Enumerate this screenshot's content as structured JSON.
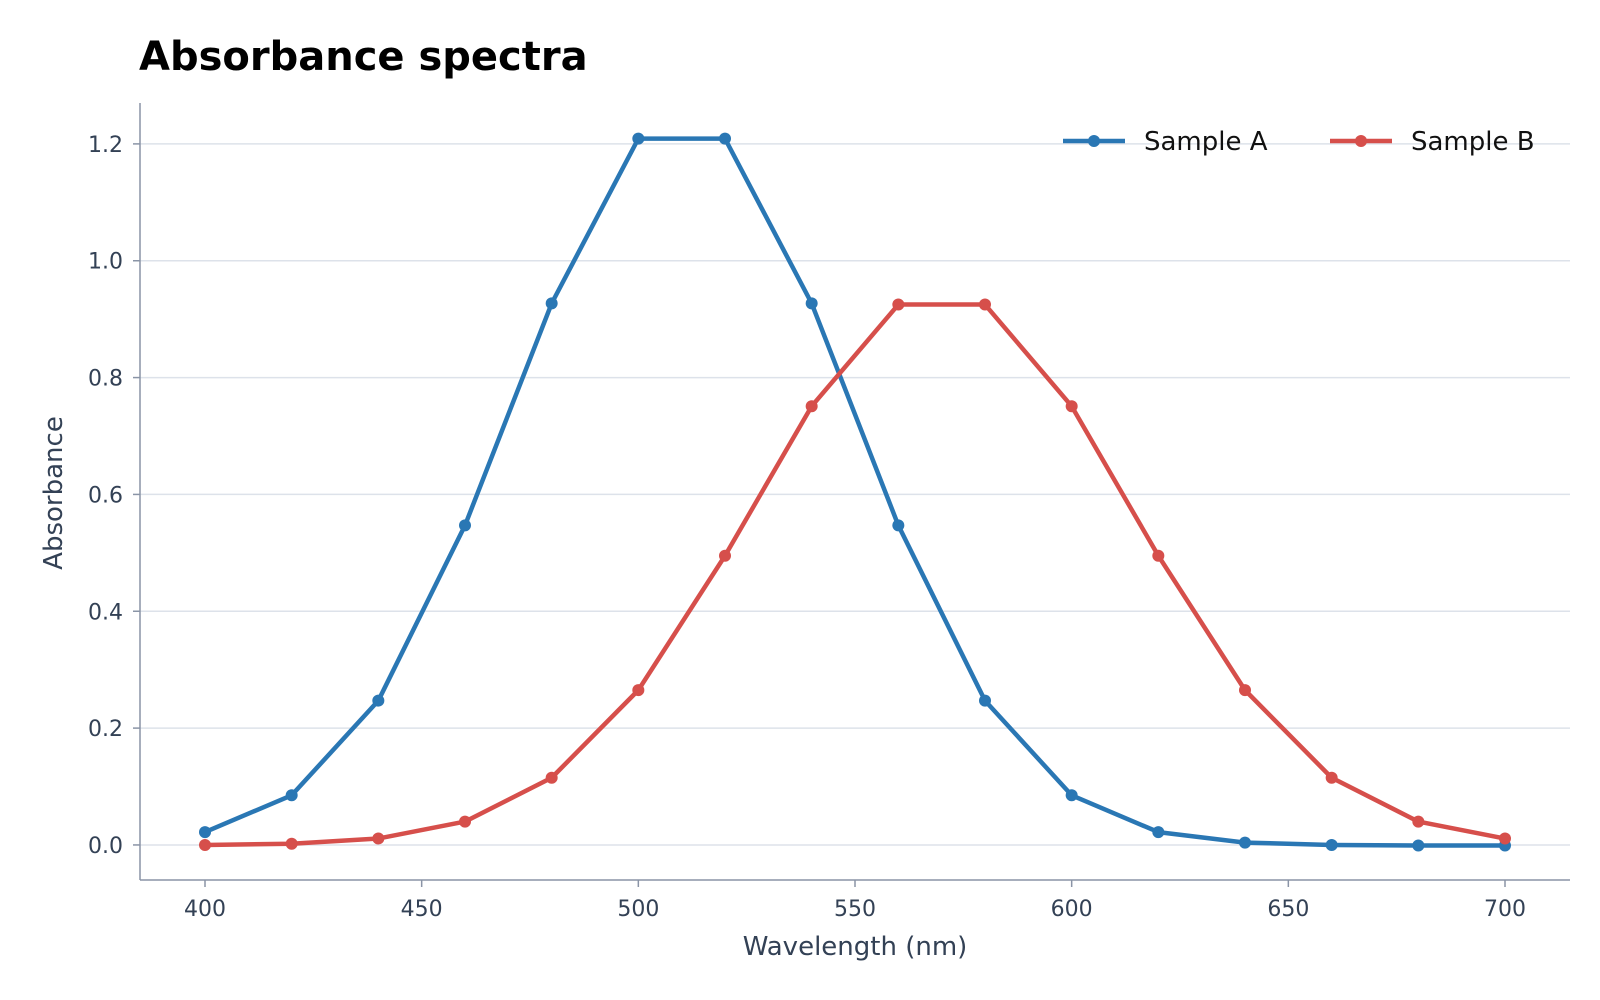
{
  "chart_data": {
    "type": "line",
    "title": "Absorbance spectra",
    "xlabel": "Wavelength (nm)",
    "ylabel": "Absorbance",
    "xlim": [
      385,
      715
    ],
    "ylim": [
      -0.06,
      1.27
    ],
    "xticks": [
      400,
      450,
      500,
      550,
      600,
      650,
      700
    ],
    "xtick_labels": [
      "400",
      "450",
      "500",
      "550",
      "600",
      "650",
      "700"
    ],
    "yticks": [
      0.0,
      0.2,
      0.4,
      0.6,
      0.8,
      1.0,
      1.2
    ],
    "ytick_labels": [
      "0.0",
      "0.2",
      "0.4",
      "0.6",
      "0.8",
      "1.0",
      "1.2"
    ],
    "grid": "horizontal",
    "legend_position": "top-right",
    "x": [
      400,
      420,
      440,
      460,
      480,
      500,
      520,
      540,
      560,
      580,
      600,
      620,
      640,
      660,
      680,
      700
    ],
    "series": [
      {
        "name": "Sample A",
        "color": "#2a77b4",
        "values": [
          0.022,
          0.085,
          0.247,
          0.547,
          0.927,
          1.209,
          1.209,
          0.927,
          0.547,
          0.247,
          0.085,
          0.022,
          0.004,
          0.0,
          -0.001,
          -0.001
        ]
      },
      {
        "name": "Sample B",
        "color": "#d64f4b",
        "values": [
          0.0,
          0.002,
          0.011,
          0.04,
          0.115,
          0.265,
          0.495,
          0.751,
          0.925,
          0.925,
          0.751,
          0.495,
          0.265,
          0.115,
          0.04,
          0.011
        ]
      }
    ]
  }
}
